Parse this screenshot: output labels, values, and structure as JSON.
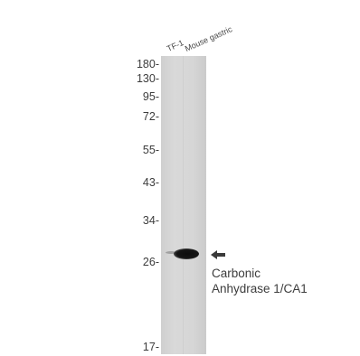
{
  "lanes": [
    "TF-1",
    "Mouse gastric"
  ],
  "markers": [
    "180-",
    "130-",
    "95-",
    "72-",
    "55-",
    "43-",
    "34-",
    "26-",
    "17-"
  ],
  "protein_label": {
    "line1": "Carbonic",
    "line2": "Anhydrase 1/CA1"
  },
  "icons": {
    "band_pointer": "left-arrow-icon"
  }
}
